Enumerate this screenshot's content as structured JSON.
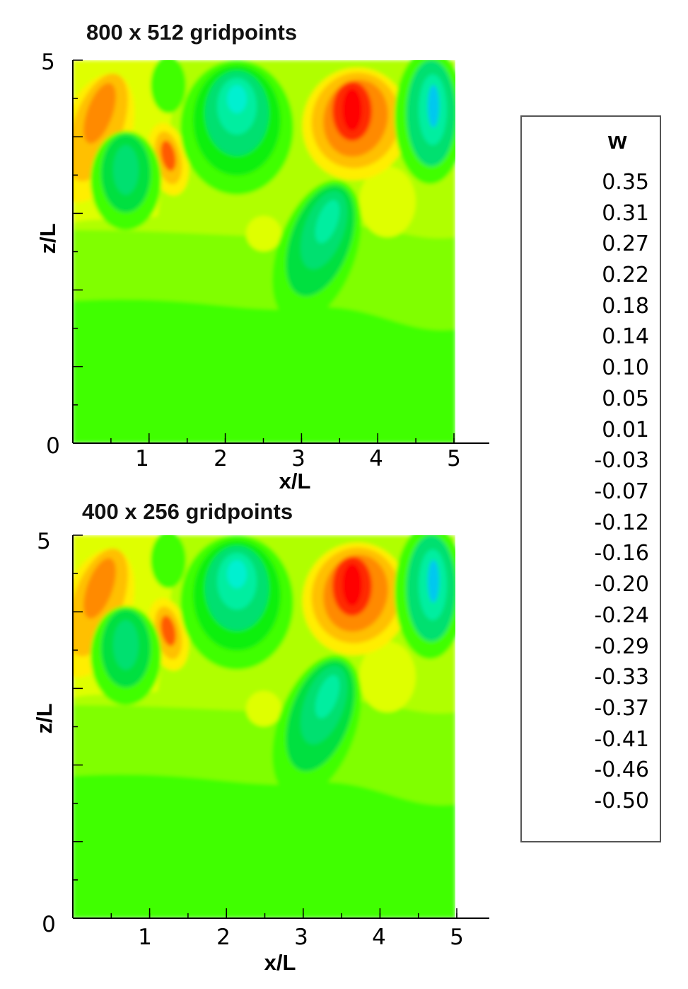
{
  "chart_data": [
    {
      "type": "heatmap",
      "title": "800 x 512 gridpoints",
      "xlabel": "x/L",
      "ylabel": "z/L",
      "xlim": [
        0,
        5.4
      ],
      "ylim": [
        0,
        5
      ],
      "x_ticks": [
        "1",
        "2",
        "3",
        "4",
        "5"
      ],
      "y_ticks": [
        "0",
        "5"
      ],
      "variable": "w"
    },
    {
      "type": "heatmap",
      "title": "400 x 256 gridpoints",
      "xlabel": "x/L",
      "ylabel": "z/L",
      "xlim": [
        0,
        5.4
      ],
      "ylim": [
        0,
        5
      ],
      "x_ticks": [
        "1",
        "2",
        "3",
        "4",
        "5"
      ],
      "y_ticks": [
        "0",
        "5"
      ],
      "variable": "w"
    }
  ],
  "legend": {
    "title": "w",
    "levels": [
      "0.35",
      "0.31",
      "0.27",
      "0.22",
      "0.18",
      "0.14",
      "0.10",
      "0.05",
      "0.01",
      "-0.03",
      "-0.07",
      "-0.12",
      "-0.16",
      "-0.20",
      "-0.24",
      "-0.29",
      "-0.33",
      "-0.37",
      "-0.41",
      "-0.46",
      "-0.50"
    ],
    "colors": [
      "#ff0000",
      "#ff2a00",
      "#ff5a00",
      "#ff8a00",
      "#ffc000",
      "#ffee00",
      "#dfff00",
      "#b0ff00",
      "#80ff00",
      "#40ff00",
      "#10f010",
      "#00e040",
      "#00e070",
      "#00eea0",
      "#00f0d0",
      "#00eeee",
      "#00c8f0",
      "#00a0f0",
      "#0070f0",
      "#0040f0",
      "#0010f0"
    ]
  }
}
